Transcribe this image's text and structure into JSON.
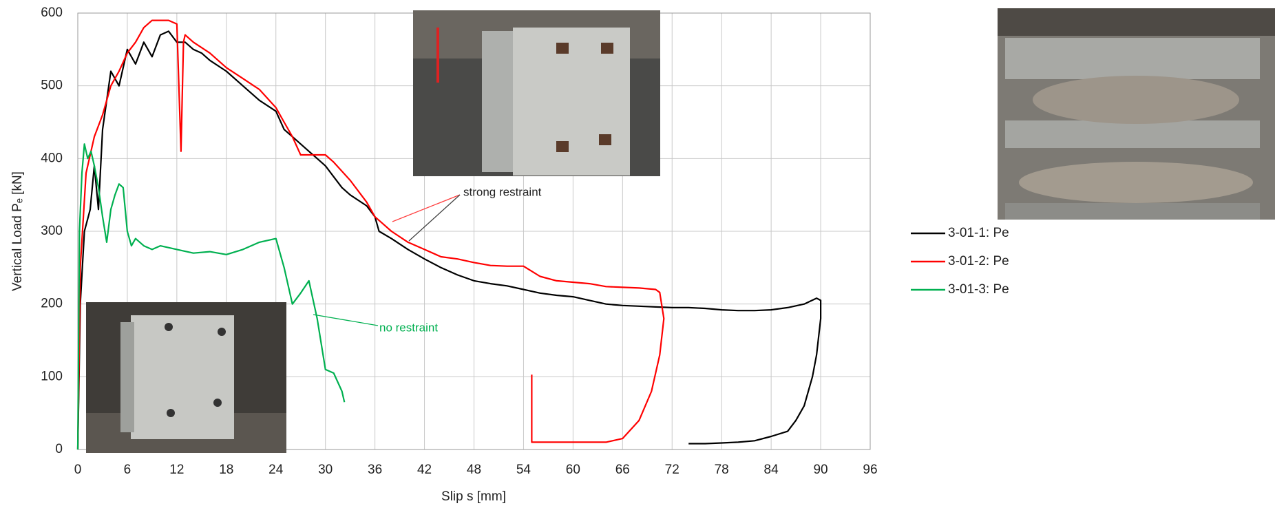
{
  "chart_data": {
    "type": "line",
    "xlabel": "Slip s [mm]",
    "ylabel": "Vertical Load Pₑ [kN]",
    "xlim": [
      0,
      96
    ],
    "ylim": [
      0,
      600
    ],
    "xticks": [
      0,
      6,
      12,
      18,
      24,
      30,
      36,
      42,
      48,
      54,
      60,
      66,
      72,
      78,
      84,
      90,
      96
    ],
    "yticks": [
      0,
      100,
      200,
      300,
      400,
      500,
      600
    ],
    "grid": true,
    "legend": "right",
    "annotations": [
      "strong restraint",
      "no restraint"
    ],
    "series": [
      {
        "name": "3-01-1: Pe",
        "color": "#000000",
        "x": [
          0,
          0.3,
          0.8,
          1.5,
          2,
          2.5,
          3,
          3.5,
          4,
          5,
          6,
          7,
          8,
          9,
          10,
          11,
          12,
          13,
          14,
          15,
          16,
          18,
          20,
          22,
          24,
          25,
          26,
          28,
          29,
          30,
          31,
          32,
          33,
          35,
          36,
          36.5,
          38,
          40,
          42,
          44,
          46,
          48,
          50,
          52,
          54,
          56,
          58,
          60,
          62,
          64,
          66,
          68,
          70,
          72,
          74,
          76,
          78,
          80,
          82,
          84,
          86,
          88,
          89.5,
          90,
          90,
          89.5,
          89,
          88,
          87,
          86,
          84,
          82,
          80,
          78,
          76,
          74
        ],
        "values": [
          0,
          200,
          300,
          330,
          390,
          330,
          440,
          480,
          520,
          500,
          550,
          530,
          560,
          540,
          570,
          575,
          560,
          560,
          550,
          545,
          535,
          520,
          500,
          480,
          465,
          440,
          430,
          410,
          400,
          390,
          375,
          360,
          350,
          335,
          320,
          300,
          290,
          275,
          262,
          250,
          240,
          232,
          228,
          225,
          220,
          215,
          212,
          210,
          205,
          200,
          198,
          197,
          196,
          195,
          195,
          194,
          192,
          191,
          191,
          192,
          195,
          200,
          208,
          205,
          180,
          130,
          100,
          60,
          40,
          25,
          18,
          12,
          10,
          9,
          8,
          8
        ]
      },
      {
        "name": "3-01-2: Pe",
        "color": "#ff0000",
        "x": [
          0,
          0.3,
          1,
          2,
          3,
          4,
          5,
          6,
          7,
          8,
          9,
          10,
          11,
          12,
          12.5,
          12.8,
          13,
          14,
          16,
          18,
          20,
          22,
          24,
          25,
          26,
          27,
          30,
          31,
          33,
          35,
          36,
          37,
          38,
          40,
          42,
          44,
          46,
          48,
          50,
          52,
          54,
          55,
          56,
          58,
          60,
          62,
          64,
          66,
          68,
          70,
          70.5,
          71,
          70.5,
          69.5,
          68,
          66,
          64,
          60,
          56,
          55,
          55
        ],
        "values": [
          0,
          250,
          380,
          430,
          460,
          500,
          520,
          545,
          560,
          580,
          590,
          590,
          590,
          585,
          410,
          560,
          570,
          560,
          545,
          525,
          510,
          495,
          470,
          450,
          430,
          405,
          405,
          395,
          370,
          340,
          320,
          310,
          300,
          285,
          275,
          265,
          262,
          257,
          253,
          252,
          252,
          245,
          238,
          232,
          230,
          228,
          224,
          223,
          222,
          220,
          216,
          180,
          130,
          80,
          40,
          15,
          10,
          10,
          10,
          10,
          103
        ]
      },
      {
        "name": "3-01-3: Pe",
        "color": "#00b050",
        "x": [
          0,
          0.2,
          0.5,
          0.8,
          1.2,
          1.6,
          2,
          2.5,
          3,
          3.5,
          4,
          4.5,
          5,
          5.5,
          6,
          6.5,
          7,
          8,
          9,
          10,
          12,
          14,
          16,
          18,
          20,
          22,
          24,
          25,
          26,
          27,
          28,
          29,
          30,
          31,
          32,
          32.3
        ],
        "values": [
          0,
          300,
          380,
          420,
          400,
          410,
          390,
          360,
          320,
          285,
          330,
          350,
          365,
          360,
          300,
          280,
          290,
          280,
          275,
          280,
          275,
          270,
          272,
          268,
          275,
          285,
          290,
          250,
          200,
          215,
          232,
          180,
          110,
          105,
          80,
          65
        ]
      }
    ]
  }
}
